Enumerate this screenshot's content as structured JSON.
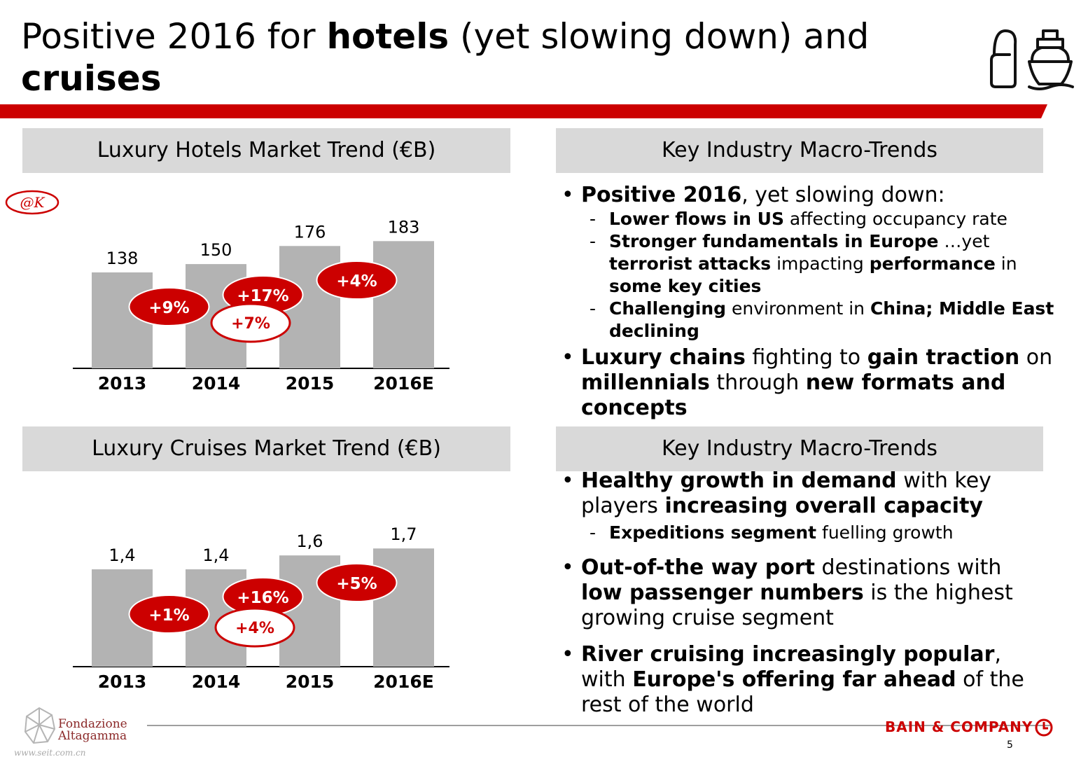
{
  "title": {
    "part1": "Positive 2016 for ",
    "bold1": "hotels",
    "part2": " (yet slowing down) and",
    "bold2": "cruises"
  },
  "panels": {
    "hotels_header": "Luxury Hotels Market Trend (€B)",
    "cruises_header": "Luxury Cruises Market Trend (€B)",
    "trends_header_top": "Key Industry Macro-Trends",
    "trends_header_bottom": "Key Industry Macro-Trends"
  },
  "ak_badge": "@K",
  "chart_data": [
    {
      "type": "bar",
      "title": "Luxury Hotels Market Trend (€B)",
      "categories": [
        "2013",
        "2014",
        "2015",
        "2016E"
      ],
      "values": [
        138,
        150,
        176,
        183
      ],
      "value_labels": [
        "138",
        "150",
        "176",
        "183"
      ],
      "growth_labels": [
        "+9%",
        "+17%",
        "+4%"
      ],
      "cagr_label": "+7%",
      "bar_color": "#b3b3b3",
      "badge_color": "#cc0000"
    },
    {
      "type": "bar",
      "title": "Luxury Cruises Market Trend (€B)",
      "categories": [
        "2013",
        "2014",
        "2015",
        "2016E"
      ],
      "values": [
        1.4,
        1.4,
        1.6,
        1.7
      ],
      "value_labels": [
        "1,4",
        "1,4",
        "1,6",
        "1,7"
      ],
      "growth_labels": [
        "+1%",
        "+16%",
        "+5%"
      ],
      "cagr_label": "+4%",
      "bar_color": "#b3b3b3",
      "badge_color": "#cc0000"
    }
  ],
  "trends_top": {
    "b1_bold": "Positive 2016",
    "b1_text": ", yet slowing down:",
    "s1_bold": "Lower flows in US",
    "s1_text": " affecting occupancy rate",
    "s2_bold": "Stronger fundamentals in Europe",
    "s2_text": " …yet ",
    "s2_bold2": "terrorist attacks",
    "s2_text2": " impacting ",
    "s2_bold3": "performance",
    "s2_text3": " in ",
    "s2_bold4": "some key cities",
    "s3_bold": "Challenging",
    "s3_text": " environment in ",
    "s3_bold2": "China; Middle East declining",
    "b2_bold": "Luxury chains",
    "b2_text": " fighting to ",
    "b2_bold2": "gain traction",
    "b2_text2": " on ",
    "b2_bold3": "millennials",
    "b2_text3": " through ",
    "b2_bold4": "new formats and concepts"
  },
  "trends_bottom": {
    "b1_bold": "Healthy growth in demand",
    "b1_text": " with key players ",
    "b1_bold2": "increasing overall capacity",
    "s1_bold": "Expeditions segment",
    "s1_text": " fuelling growth",
    "b2_bold": "Out-of-the way port",
    "b2_text": " destinations with ",
    "b2_bold2": "low passenger numbers",
    "b2_text2": " is the highest growing cruise segment",
    "b3_bold": "River cruising increasingly popular",
    "b3_text": ", with ",
    "b3_bold2": "Europe's offering far ahead",
    "b3_text2": " of the rest of the world"
  },
  "footer": {
    "fa_line1": "Fondazione",
    "fa_line2": "Altagamma",
    "watermark": "www.seit.com.cn",
    "bain": "BAIN & COMPANY",
    "page": "5"
  }
}
